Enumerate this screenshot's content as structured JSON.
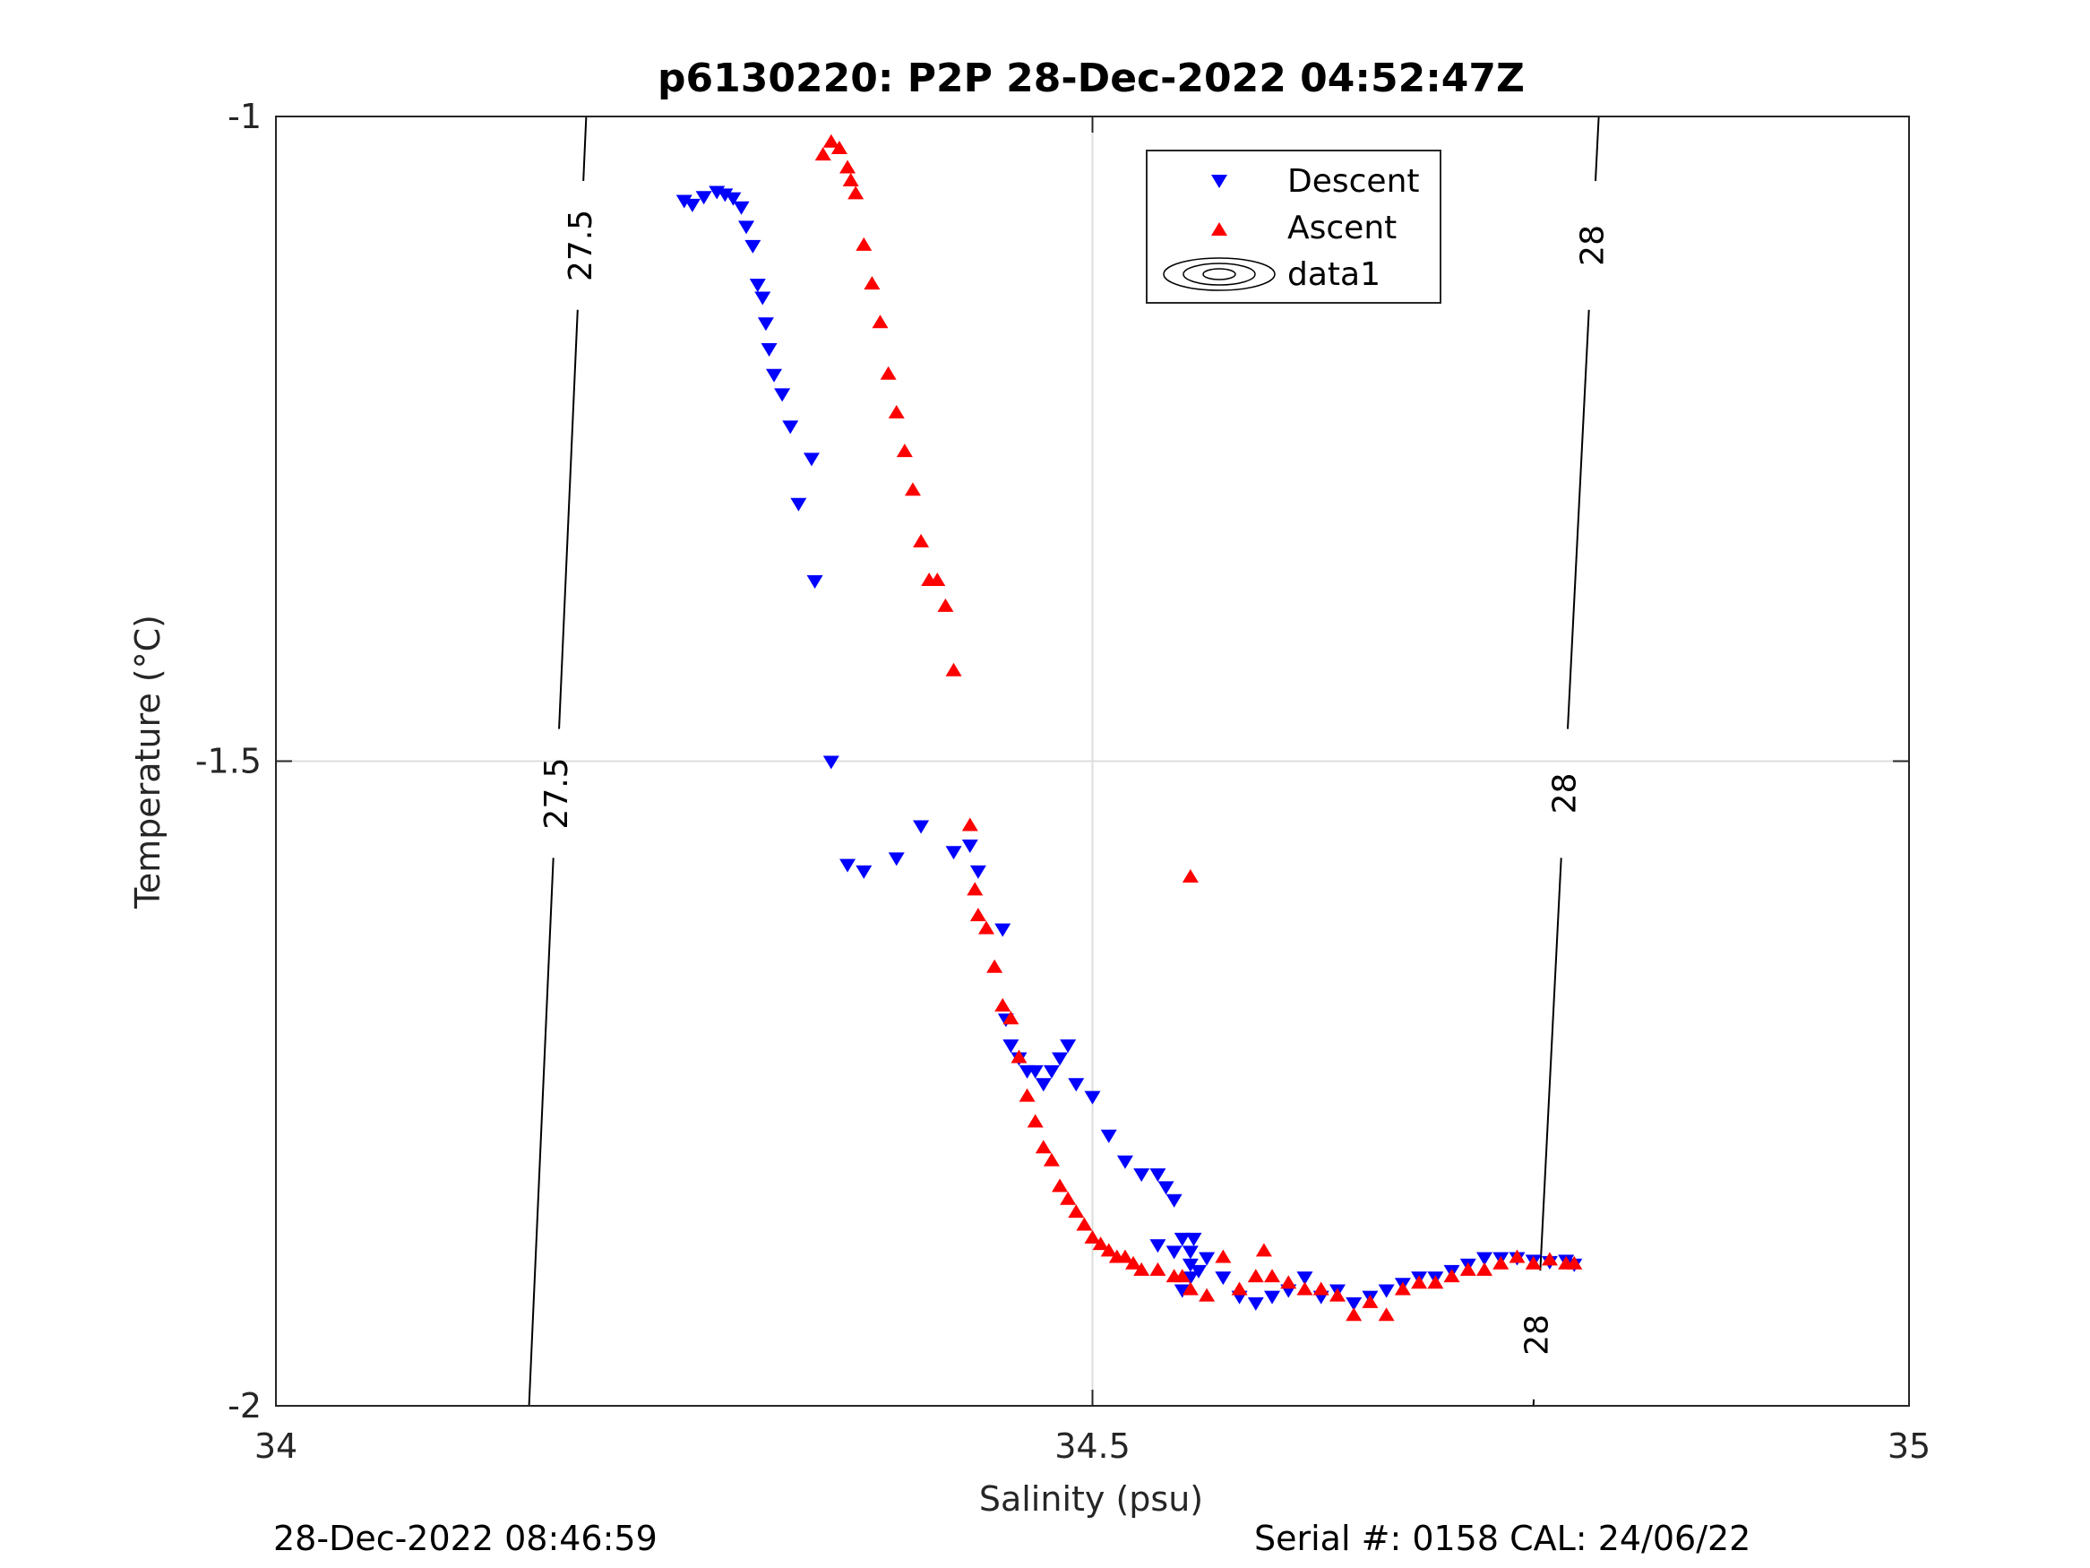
{
  "chart_data": {
    "type": "scatter",
    "title": "p6130220: P2P 28-Dec-2022 04:52:47Z",
    "xlabel": "Salinity (psu)",
    "ylabel": "Temperature (°C)",
    "xlim": [
      34,
      35
    ],
    "ylim": [
      -2,
      -1
    ],
    "xticks": [
      "34",
      "34.5",
      "35"
    ],
    "yticks": [
      "-1",
      "-1.5",
      "-2"
    ],
    "grid": true,
    "legend_position": "top-right",
    "legend": [
      "Descent",
      "Ascent",
      "data1"
    ],
    "footer_left": "28-Dec-2022 08:46:59",
    "footer_right": "Serial #: 0158  CAL: 24/06/22",
    "contours": [
      {
        "level": 27.5,
        "label": "27.5",
        "points": [
          [
            34.19,
            -1.0
          ],
          [
            34.155,
            -2.0
          ]
        ]
      },
      {
        "level": 28,
        "label": "28",
        "points": [
          [
            34.81,
            -1.0
          ],
          [
            34.77,
            -2.0
          ]
        ]
      }
    ],
    "series": [
      {
        "name": "Descent",
        "marker": "triangle-down",
        "color": "#0000ff",
        "x": [
          34.25,
          34.255,
          34.262,
          34.27,
          34.275,
          34.28,
          34.285,
          34.288,
          34.292,
          34.295,
          34.298,
          34.3,
          34.302,
          34.305,
          34.31,
          34.315,
          34.32,
          34.328,
          34.33,
          34.34,
          34.35,
          34.36,
          34.38,
          34.395,
          34.415,
          34.425,
          34.43,
          34.445,
          34.447,
          34.45,
          34.455,
          34.46,
          34.465,
          34.47,
          34.475,
          34.48,
          34.485,
          34.49,
          34.5,
          34.51,
          34.52,
          34.53,
          34.54,
          34.545,
          34.55,
          34.555,
          34.56,
          34.562,
          34.565,
          34.56,
          34.555,
          34.54,
          34.55,
          34.56,
          34.57,
          34.58,
          34.59,
          34.6,
          34.61,
          34.62,
          34.63,
          34.64,
          34.65,
          34.66,
          34.67,
          34.68,
          34.69,
          34.7,
          34.71,
          34.72,
          34.73,
          34.74,
          34.75,
          34.76,
          34.77,
          34.78,
          34.79,
          34.795
        ],
        "y": [
          -1.065,
          -1.068,
          -1.062,
          -1.058,
          -1.06,
          -1.063,
          -1.07,
          -1.085,
          -1.1,
          -1.13,
          -1.14,
          -1.16,
          -1.18,
          -1.2,
          -1.215,
          -1.24,
          -1.3,
          -1.265,
          -1.36,
          -1.5,
          -1.58,
          -1.585,
          -1.575,
          -1.55,
          -1.57,
          -1.565,
          -1.585,
          -1.63,
          -1.7,
          -1.72,
          -1.73,
          -1.74,
          -1.74,
          -1.75,
          -1.74,
          -1.73,
          -1.72,
          -1.75,
          -1.76,
          -1.79,
          -1.81,
          -1.82,
          -1.82,
          -1.83,
          -1.84,
          -1.87,
          -1.88,
          -1.87,
          -1.895,
          -1.9,
          -1.91,
          -1.875,
          -1.88,
          -1.89,
          -1.885,
          -1.9,
          -1.915,
          -1.92,
          -1.915,
          -1.91,
          -1.9,
          -1.915,
          -1.91,
          -1.92,
          -1.915,
          -1.91,
          -1.905,
          -1.9,
          -1.9,
          -1.895,
          -1.89,
          -1.885,
          -1.885,
          -1.885,
          -1.887,
          -1.888,
          -1.887,
          -1.89
        ]
      },
      {
        "name": "Ascent",
        "marker": "triangle-up",
        "color": "#ff0000",
        "x": [
          34.335,
          34.34,
          34.345,
          34.35,
          34.352,
          34.355,
          34.36,
          34.365,
          34.37,
          34.375,
          34.38,
          34.385,
          34.39,
          34.395,
          34.4,
          34.405,
          34.41,
          34.415,
          34.425,
          34.428,
          34.43,
          34.435,
          34.44,
          34.445,
          34.45,
          34.455,
          34.46,
          34.465,
          34.47,
          34.475,
          34.48,
          34.485,
          34.49,
          34.495,
          34.5,
          34.505,
          34.51,
          34.515,
          34.52,
          34.525,
          34.53,
          34.54,
          34.55,
          34.555,
          34.56,
          34.57,
          34.58,
          34.59,
          34.6,
          34.605,
          34.61,
          34.62,
          34.63,
          34.64,
          34.65,
          34.66,
          34.67,
          34.68,
          34.69,
          34.7,
          34.71,
          34.72,
          34.73,
          34.74,
          34.75,
          34.76,
          34.77,
          34.78,
          34.79,
          34.795
        ],
        "y": [
          -1.03,
          -1.02,
          -1.025,
          -1.04,
          -1.05,
          -1.06,
          -1.1,
          -1.13,
          -1.16,
          -1.2,
          -1.23,
          -1.26,
          -1.29,
          -1.33,
          -1.36,
          -1.36,
          -1.38,
          -1.43,
          -1.55,
          -1.6,
          -1.62,
          -1.63,
          -1.66,
          -1.69,
          -1.7,
          -1.73,
          -1.76,
          -1.78,
          -1.8,
          -1.81,
          -1.83,
          -1.84,
          -1.85,
          -1.86,
          -1.87,
          -1.875,
          -1.88,
          -1.885,
          -1.885,
          -1.89,
          -1.895,
          -1.895,
          -1.9,
          -1.9,
          -1.91,
          -1.915,
          -1.885,
          -1.91,
          -1.9,
          -1.88,
          -1.9,
          -1.905,
          -1.91,
          -1.91,
          -1.915,
          -1.93,
          -1.92,
          -1.93,
          -1.91,
          -1.905,
          -1.905,
          -1.9,
          -1.895,
          -1.895,
          -1.89,
          -1.885,
          -1.89,
          -1.887,
          -1.89,
          -1.89
        ]
      }
    ],
    "extra_points": {
      "ascent_outlier": {
        "x": 34.56,
        "y": -1.59
      }
    }
  }
}
